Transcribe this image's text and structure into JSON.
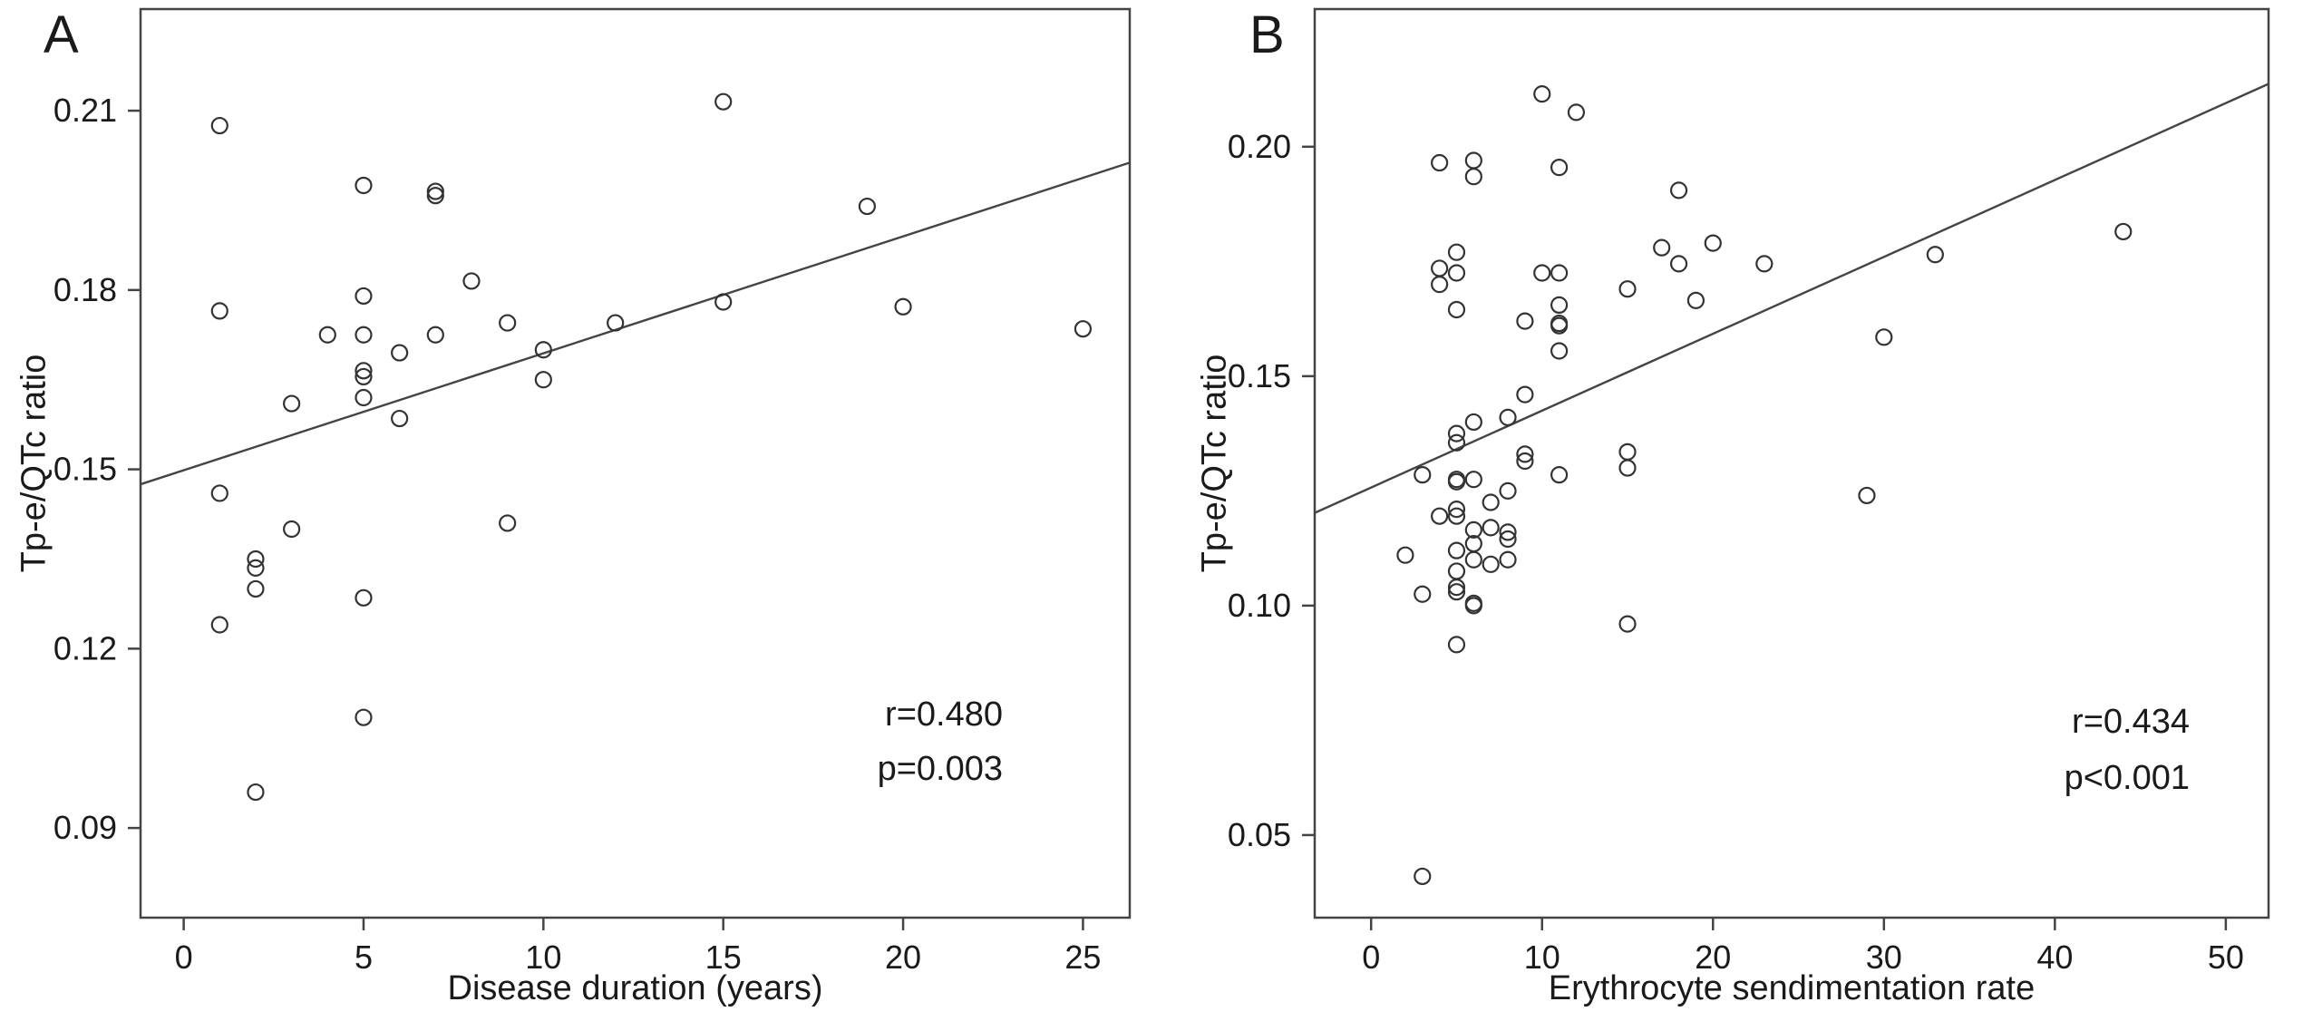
{
  "chart_data": [
    {
      "type": "scatter",
      "panel_label": "A",
      "title": "",
      "xlabel": "Disease duration (years)",
      "ylabel": "Tp-e/QTc ratio",
      "xlim": [
        -1.2,
        26.3
      ],
      "ylim": [
        0.075,
        0.227
      ],
      "xticks": [
        0,
        5,
        10,
        15,
        20,
        25
      ],
      "yticks": [
        0.09,
        0.12,
        0.15,
        0.18,
        0.21
      ],
      "ytick_labels": [
        "0.09",
        "0.12",
        "0.15",
        "0.18",
        "0.21"
      ],
      "grid": false,
      "fit_line": {
        "x": [
          -1.2,
          26.3
        ],
        "y": [
          0.1475,
          0.2013
        ]
      },
      "annotations": [
        "r=0.480",
        "p=0.003"
      ],
      "points": [
        {
          "x": 1,
          "y": 0.2075
        },
        {
          "x": 1,
          "y": 0.1765
        },
        {
          "x": 1,
          "y": 0.146
        },
        {
          "x": 1,
          "y": 0.124
        },
        {
          "x": 2,
          "y": 0.135
        },
        {
          "x": 2,
          "y": 0.1335
        },
        {
          "x": 2,
          "y": 0.13
        },
        {
          "x": 2,
          "y": 0.096
        },
        {
          "x": 3,
          "y": 0.161
        },
        {
          "x": 3,
          "y": 0.14
        },
        {
          "x": 4,
          "y": 0.1725
        },
        {
          "x": 5,
          "y": 0.1975
        },
        {
          "x": 5,
          "y": 0.179
        },
        {
          "x": 5,
          "y": 0.1725
        },
        {
          "x": 5,
          "y": 0.1665
        },
        {
          "x": 5,
          "y": 0.1655
        },
        {
          "x": 5,
          "y": 0.162
        },
        {
          "x": 5,
          "y": 0.1285
        },
        {
          "x": 5,
          "y": 0.1085
        },
        {
          "x": 6,
          "y": 0.1695
        },
        {
          "x": 6,
          "y": 0.1585
        },
        {
          "x": 7,
          "y": 0.1965
        },
        {
          "x": 7,
          "y": 0.1958
        },
        {
          "x": 7,
          "y": 0.1725
        },
        {
          "x": 8,
          "y": 0.1815
        },
        {
          "x": 9,
          "y": 0.1745
        },
        {
          "x": 9,
          "y": 0.141
        },
        {
          "x": 10,
          "y": 0.17
        },
        {
          "x": 10,
          "y": 0.165
        },
        {
          "x": 12,
          "y": 0.1745
        },
        {
          "x": 15,
          "y": 0.2115
        },
        {
          "x": 15,
          "y": 0.178
        },
        {
          "x": 19,
          "y": 0.194
        },
        {
          "x": 20,
          "y": 0.1772
        },
        {
          "x": 25,
          "y": 0.1735
        }
      ]
    },
    {
      "type": "scatter",
      "panel_label": "B",
      "title": "",
      "xlabel": "Erythrocyte sendimentation rate",
      "ylabel": "Tp-e/QTc ratio",
      "xlim": [
        -3.3,
        52.5
      ],
      "ylim": [
        0.032,
        0.23
      ],
      "xticks": [
        0,
        10,
        20,
        30,
        40,
        50
      ],
      "yticks": [
        0.05,
        0.1,
        0.15,
        0.2
      ],
      "ytick_labels": [
        "0.05",
        "0.10",
        "0.15",
        "0.20"
      ],
      "grid": false,
      "fit_line": {
        "x": [
          -3.3,
          52.5
        ],
        "y": [
          0.1202,
          0.2137
        ]
      },
      "annotations": [
        "r=0.434",
        "p<0.001"
      ],
      "points": [
        {
          "x": 2,
          "y": 0.111
        },
        {
          "x": 3,
          "y": 0.1285
        },
        {
          "x": 3,
          "y": 0.1025
        },
        {
          "x": 3,
          "y": 0.041
        },
        {
          "x": 4,
          "y": 0.1965
        },
        {
          "x": 4,
          "y": 0.1735
        },
        {
          "x": 4,
          "y": 0.17
        },
        {
          "x": 4,
          "y": 0.1195
        },
        {
          "x": 5,
          "y": 0.177
        },
        {
          "x": 5,
          "y": 0.1725
        },
        {
          "x": 5,
          "y": 0.1645
        },
        {
          "x": 5,
          "y": 0.1375
        },
        {
          "x": 5,
          "y": 0.1355
        },
        {
          "x": 5,
          "y": 0.1275
        },
        {
          "x": 5,
          "y": 0.127
        },
        {
          "x": 5,
          "y": 0.121
        },
        {
          "x": 5,
          "y": 0.1195
        },
        {
          "x": 5,
          "y": 0.112
        },
        {
          "x": 5,
          "y": 0.1075
        },
        {
          "x": 5,
          "y": 0.104
        },
        {
          "x": 5,
          "y": 0.103
        },
        {
          "x": 5,
          "y": 0.0915
        },
        {
          "x": 6,
          "y": 0.197
        },
        {
          "x": 6,
          "y": 0.1935
        },
        {
          "x": 6,
          "y": 0.14
        },
        {
          "x": 6,
          "y": 0.1275
        },
        {
          "x": 6,
          "y": 0.1165
        },
        {
          "x": 6,
          "y": 0.1135
        },
        {
          "x": 6,
          "y": 0.11
        },
        {
          "x": 6,
          "y": 0.1005
        },
        {
          "x": 6,
          "y": 0.1
        },
        {
          "x": 7,
          "y": 0.1225
        },
        {
          "x": 7,
          "y": 0.117
        },
        {
          "x": 7,
          "y": 0.109
        },
        {
          "x": 8,
          "y": 0.141
        },
        {
          "x": 8,
          "y": 0.125
        },
        {
          "x": 8,
          "y": 0.116
        },
        {
          "x": 8,
          "y": 0.1145
        },
        {
          "x": 8,
          "y": 0.11
        },
        {
          "x": 9,
          "y": 0.162
        },
        {
          "x": 9,
          "y": 0.146
        },
        {
          "x": 9,
          "y": 0.133
        },
        {
          "x": 9,
          "y": 0.1315
        },
        {
          "x": 10,
          "y": 0.2115
        },
        {
          "x": 10,
          "y": 0.1725
        },
        {
          "x": 11,
          "y": 0.1955
        },
        {
          "x": 11,
          "y": 0.1725
        },
        {
          "x": 11,
          "y": 0.1655
        },
        {
          "x": 11,
          "y": 0.1615
        },
        {
          "x": 11,
          "y": 0.161
        },
        {
          "x": 11,
          "y": 0.1555
        },
        {
          "x": 11,
          "y": 0.1285
        },
        {
          "x": 12,
          "y": 0.2075
        },
        {
          "x": 15,
          "y": 0.169
        },
        {
          "x": 15,
          "y": 0.1335
        },
        {
          "x": 15,
          "y": 0.13
        },
        {
          "x": 15,
          "y": 0.096
        },
        {
          "x": 17,
          "y": 0.178
        },
        {
          "x": 18,
          "y": 0.1905
        },
        {
          "x": 18,
          "y": 0.1745
        },
        {
          "x": 19,
          "y": 0.1665
        },
        {
          "x": 20,
          "y": 0.179
        },
        {
          "x": 23,
          "y": 0.1745
        },
        {
          "x": 29,
          "y": 0.124
        },
        {
          "x": 30,
          "y": 0.1585
        },
        {
          "x": 33,
          "y": 0.1765
        },
        {
          "x": 44,
          "y": 0.1815
        }
      ]
    }
  ]
}
